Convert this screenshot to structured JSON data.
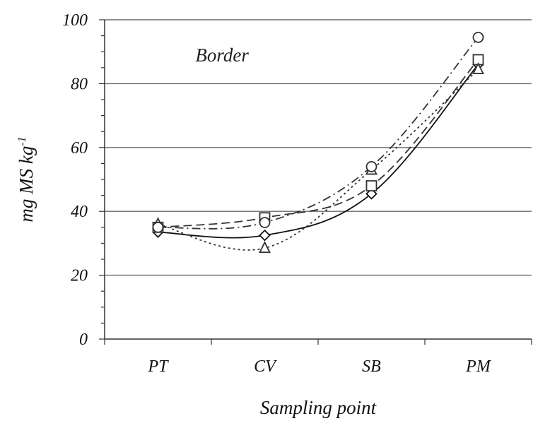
{
  "chart_data": {
    "type": "line",
    "title": "",
    "annotation": "Border",
    "xlabel": "Sampling point",
    "ylabel": "mg MS kg",
    "ylabel_superscript": "-1",
    "categories": [
      "PT",
      "CV",
      "SB",
      "PM"
    ],
    "ylim": [
      0,
      100
    ],
    "yticks": [
      "0",
      "20",
      "40",
      "60",
      "80",
      "100"
    ],
    "grid": true,
    "series": [
      {
        "values": [
          33.5,
          32.5,
          45.5,
          86
        ],
        "marker": "diamond",
        "line_style": "solid",
        "color": "#111111"
      },
      {
        "values": [
          35,
          38,
          48,
          87.5
        ],
        "marker": "square",
        "line_style": "dashed",
        "color": "#333333"
      },
      {
        "values": [
          36,
          28.5,
          53,
          84.5
        ],
        "marker": "triangle",
        "line_style": "dotted",
        "color": "#333333"
      },
      {
        "values": [
          35,
          36.5,
          54,
          94.5
        ],
        "marker": "circle",
        "line_style": "dash-dot",
        "color": "#333333"
      }
    ]
  }
}
